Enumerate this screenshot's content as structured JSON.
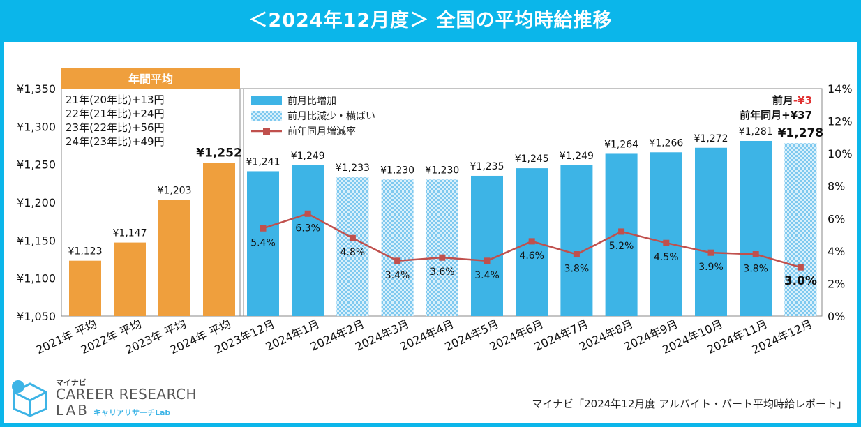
{
  "title": "＜2024年12月度＞ 全国の平均時給推移",
  "colors": {
    "accent": "#0bb6ea",
    "annual": "#ef9f3d",
    "increase": "#3db4e6",
    "decrease": "#a9dcf5",
    "yoy_line": "#c0504d",
    "negative": "#e03030"
  },
  "annual_box": {
    "header": "年間平均",
    "notes": [
      "21年(20年比)+13円",
      "22年(21年比)+24円",
      "23年(22年比)+56円",
      "24年(23年比)+49円"
    ]
  },
  "summary": {
    "mom_label": "前月",
    "mom_value": "-¥3",
    "yoy_label": "前年同月+¥37"
  },
  "legend": {
    "increase": "前月比増加",
    "decrease": "前月比減少・横ばい",
    "yoy": "前年同月増減率"
  },
  "logo": {
    "brand": "マイナビ",
    "line1": "CAREER RESEARCH",
    "line2": "LAB",
    "sub": "キャリアリサーチLab"
  },
  "source": "マイナビ「2024年12月度 アルバイト・パート平均時給レポート」",
  "chart_data": {
    "type": "bar",
    "left_axis": {
      "min": 1050,
      "max": 1350,
      "ticks": [
        "¥1,050",
        "¥1,100",
        "¥1,150",
        "¥1,200",
        "¥1,250",
        "¥1,300",
        "¥1,350"
      ]
    },
    "right_axis": {
      "min": 0,
      "max": 14,
      "ticks": [
        "0%",
        "2%",
        "4%",
        "6%",
        "8%",
        "10%",
        "12%",
        "14%"
      ]
    },
    "categories": [
      "2021年 平均",
      "2022年 平均",
      "2023年 平均",
      "2024年 平均",
      "2023年12月",
      "2024年1月",
      "2024年2月",
      "2024年3月",
      "2024年4月",
      "2024年5月",
      "2024年6月",
      "2024年7月",
      "2024年8月",
      "2024年9月",
      "2024年10月",
      "2024年11月",
      "2024年12月"
    ],
    "values": [
      1123,
      1147,
      1203,
      1252,
      1241,
      1249,
      1233,
      1230,
      1230,
      1235,
      1245,
      1249,
      1264,
      1266,
      1272,
      1281,
      1278
    ],
    "value_labels": [
      "¥1,123",
      "¥1,147",
      "¥1,203",
      "¥1,252",
      "¥1,241",
      "¥1,249",
      "¥1,233",
      "¥1,230",
      "¥1,230",
      "¥1,235",
      "¥1,245",
      "¥1,249",
      "¥1,264",
      "¥1,266",
      "¥1,272",
      "¥1,281",
      "¥1,278"
    ],
    "bar_kind": [
      "annual",
      "annual",
      "annual",
      "annual",
      "increase",
      "increase",
      "decrease",
      "decrease",
      "decrease",
      "increase",
      "increase",
      "increase",
      "increase",
      "increase",
      "increase",
      "increase",
      "decrease"
    ],
    "yoy_rates": [
      5.4,
      6.3,
      4.8,
      3.4,
      3.6,
      3.4,
      4.6,
      3.8,
      5.2,
      4.5,
      3.9,
      3.8,
      3.0
    ],
    "yoy_labels": [
      "5.4%",
      "6.3%",
      "4.8%",
      "3.4%",
      "3.6%",
      "3.4%",
      "4.6%",
      "3.8%",
      "5.2%",
      "4.5%",
      "3.9%",
      "3.8%",
      "3.0%"
    ],
    "grid": false
  }
}
